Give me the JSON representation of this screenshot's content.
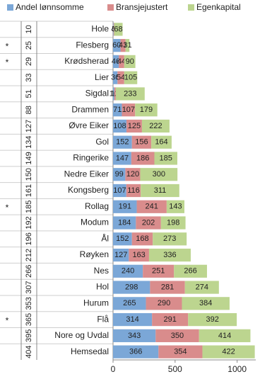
{
  "chart_data": {
    "type": "stacked-bar-horizontal",
    "categories": [
      "Hole",
      "Flesberg",
      "Krødsherad",
      "Lier",
      "Sigdal",
      "Drammen",
      "Øvre Eiker",
      "Gol",
      "Ringerike",
      "Nedre Eiker",
      "Kongsberg",
      "Rollag",
      "Modum",
      "Ål",
      "Røyken",
      "Nes",
      "Hol",
      "Hurum",
      "Flå",
      "Nore og Uvdal",
      "Hemsedal"
    ],
    "rank": [
      "10",
      "25",
      "29",
      "33",
      "51",
      "88",
      "127",
      "134",
      "149",
      "150",
      "161",
      "185",
      "192",
      "196",
      "212",
      "266",
      "307",
      "353",
      "365",
      "395",
      "404"
    ],
    "marker": [
      null,
      "*",
      "*",
      null,
      null,
      null,
      null,
      null,
      null,
      null,
      null,
      "*",
      null,
      null,
      null,
      null,
      null,
      null,
      "*",
      null,
      null
    ],
    "series": [
      {
        "name": "Andel lønnsomme",
        "color": "#7ba7d7",
        "values": [
          4,
          60,
          46,
          36,
          10,
          71,
          108,
          152,
          147,
          99,
          107,
          191,
          184,
          152,
          127,
          240,
          298,
          265,
          314,
          343,
          366
        ]
      },
      {
        "name": "Bransjejustert",
        "color": "#d98c8c",
        "values": [
          5,
          41,
          44,
          54,
          12,
          107,
          125,
          156,
          186,
          120,
          116,
          241,
          202,
          168,
          163,
          251,
          281,
          290,
          291,
          350,
          354
        ]
      },
      {
        "name": "Egenkapital",
        "color": "#bcd58f",
        "values": [
          68,
          31,
          90,
          105,
          233,
          179,
          222,
          164,
          185,
          300,
          311,
          143,
          198,
          273,
          336,
          266,
          274,
          384,
          392,
          414,
          422
        ]
      }
    ],
    "xlim": [
      0,
      1150
    ],
    "xticks": [
      0,
      500,
      1000
    ]
  }
}
